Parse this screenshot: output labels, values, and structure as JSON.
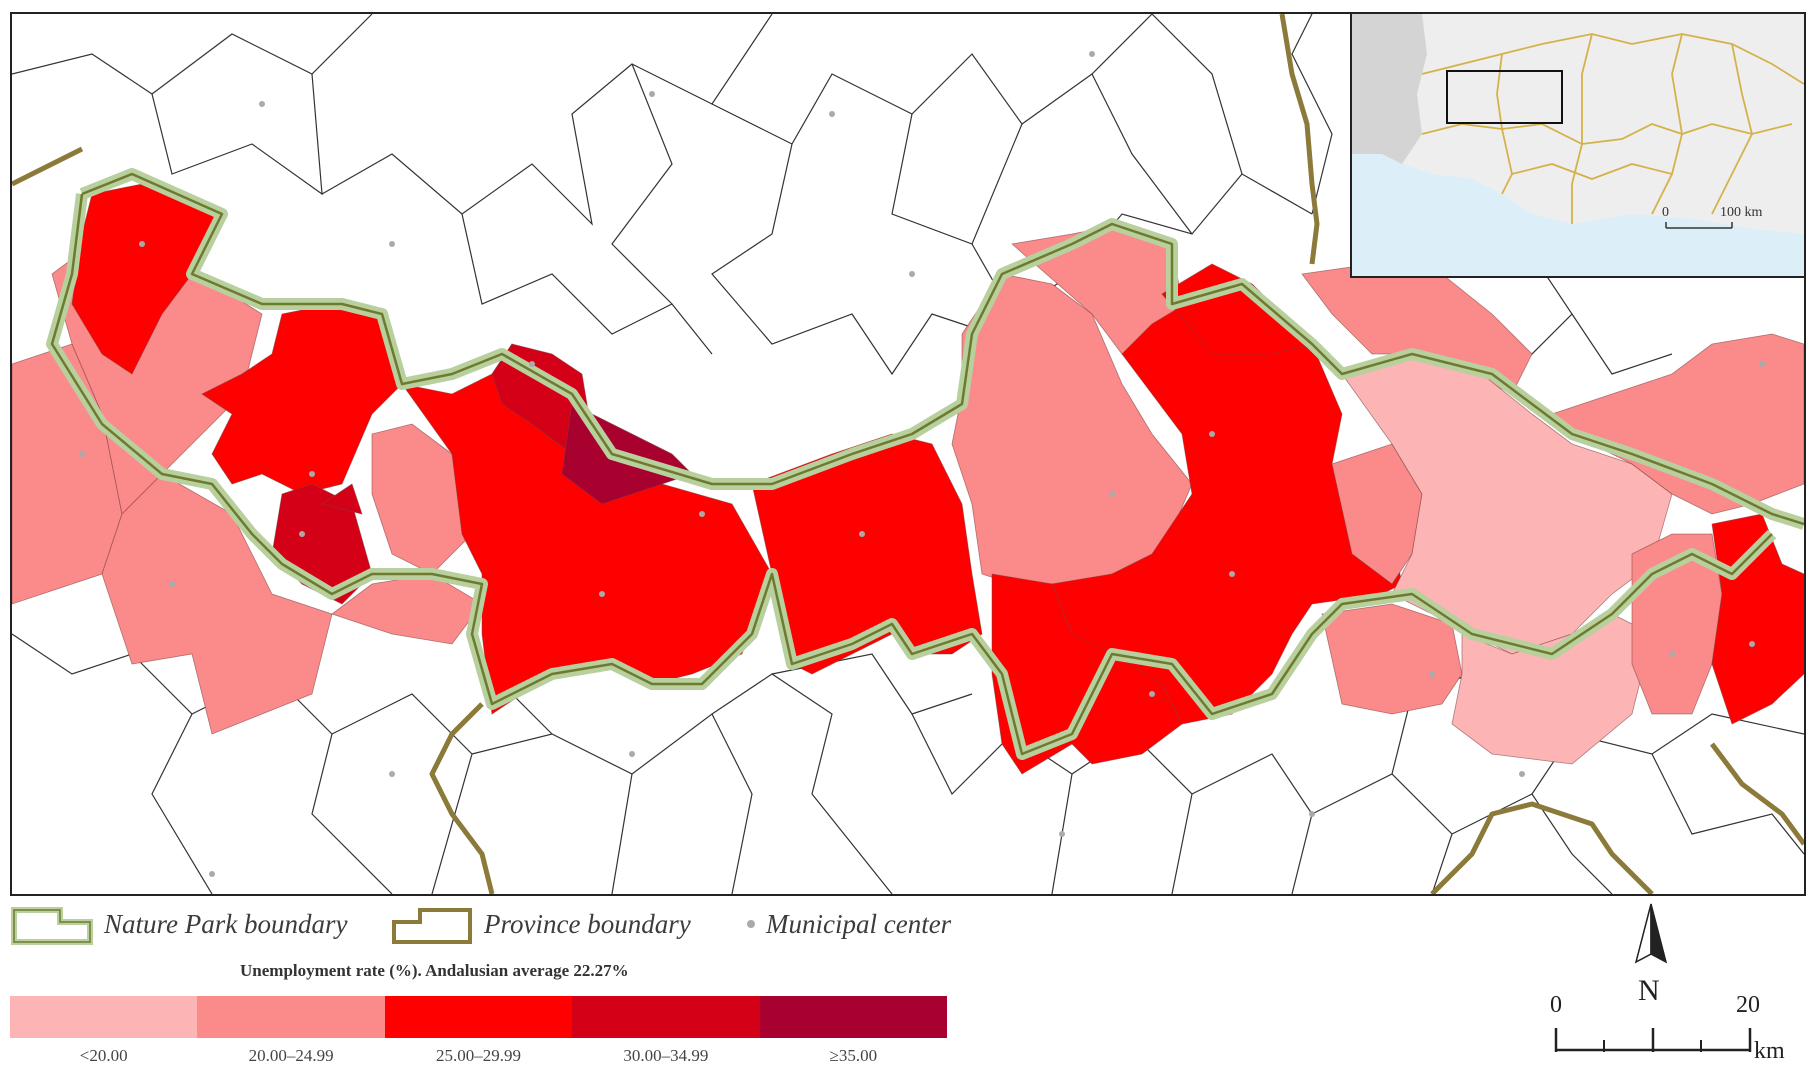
{
  "legend": {
    "nature_park": "Nature Park boundary",
    "province": "Province boundary",
    "municipal": "Municipal center"
  },
  "scale_title": "Unemployment rate (%). Andalusian average 22.27%",
  "classes": [
    {
      "label": "<20.00",
      "color": "#fcb4b4"
    },
    {
      "label": "20.00–24.99",
      "color": "#fb8a8a"
    },
    {
      "label": "25.00–29.99",
      "color": "#ff0000"
    },
    {
      "label": "30.00–34.99",
      "color": "#d40018"
    },
    {
      "label": "≥35.00",
      "color": "#a8002f"
    }
  ],
  "north_label": "N",
  "scalebar": {
    "start": "0",
    "end": "20",
    "unit": "km"
  },
  "inset": {
    "scale_start": "0",
    "scale_end": "100 km"
  },
  "colors": {
    "park_boundary": "#b8cf9e",
    "province_boundary": "#8c7a3a",
    "municipal_line": "#333333",
    "municipal_dot": "#aaaaaa"
  }
}
